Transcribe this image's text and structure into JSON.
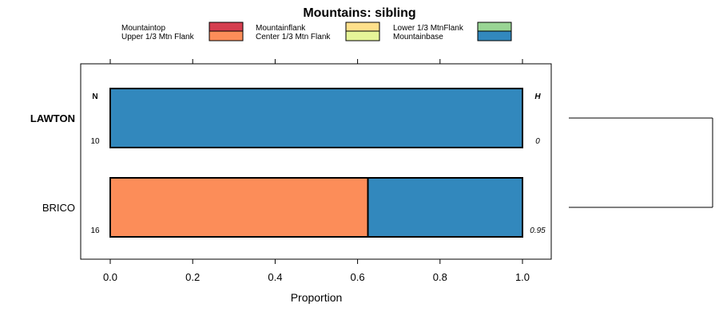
{
  "chart_data": {
    "type": "bar",
    "orientation": "horizontal",
    "stacked": true,
    "title": "Mountains: sibling",
    "xlabel": "Proportion",
    "xlim": [
      0,
      1
    ],
    "xticks": [
      "0.0",
      "0.2",
      "0.4",
      "0.6",
      "0.8",
      "1.0"
    ],
    "legend_position": "top",
    "legend": [
      {
        "name": "Mountaintop",
        "color": "#D53E4F"
      },
      {
        "name": "Upper 1/3 Mtn Flank",
        "color": "#FC8D59"
      },
      {
        "name": "Mountainflank",
        "color": "#FEE08B"
      },
      {
        "name": "Center 1/3 Mtn Flank",
        "color": "#E6F598"
      },
      {
        "name": "Lower 1/3 MtnFlank",
        "color": "#99D594"
      },
      {
        "name": "Mountainbase",
        "color": "#3288BD"
      }
    ],
    "n_header": "N",
    "h_header": "H",
    "categories": [
      "LAWTON",
      "BRICO"
    ],
    "highlighted_category": "LAWTON",
    "rows": [
      {
        "label": "LAWTON",
        "n": "10",
        "h": "0",
        "segments": [
          {
            "name": "Mountainbase",
            "value": 1.0
          }
        ]
      },
      {
        "label": "BRICO",
        "n": "16",
        "h": "0.95",
        "segments": [
          {
            "name": "Upper 1/3 Mtn Flank",
            "value": 0.625
          },
          {
            "name": "Mountainbase",
            "value": 0.375
          }
        ]
      }
    ],
    "dendrogram": {
      "type": "cluster",
      "leaves": [
        "LAWTON",
        "BRICO"
      ]
    }
  }
}
